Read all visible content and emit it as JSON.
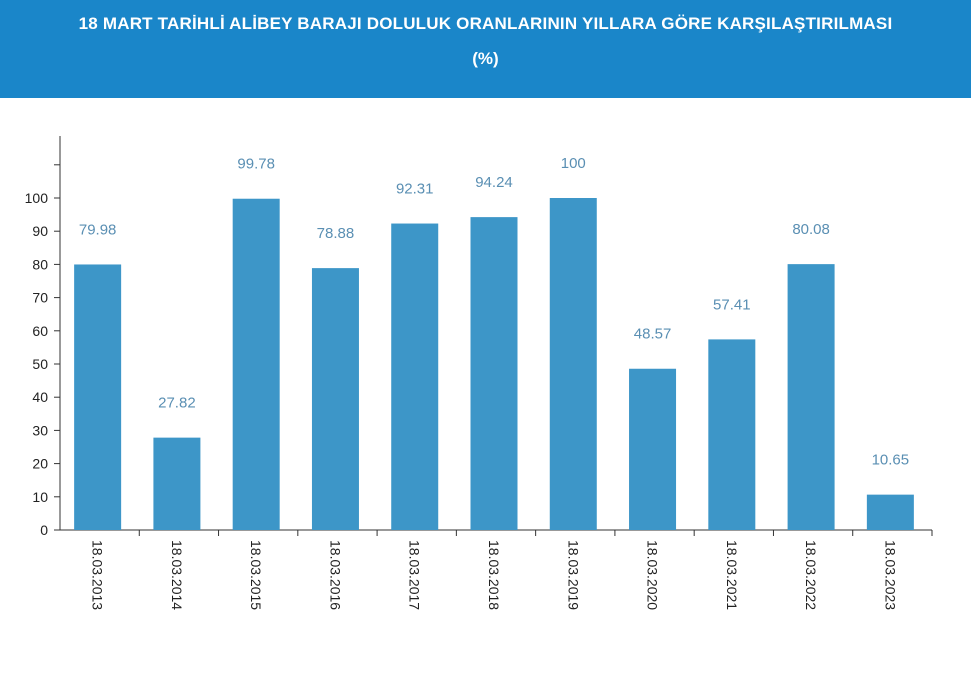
{
  "header": {
    "title": "18 MART TARİHLİ ALİBEY BARAJI DOLULUK ORANLARININ YILLARA GÖRE KARŞILAŞTIRILMASI",
    "subtitle": "(%)"
  },
  "colors": {
    "header_bg": "#1a86c9",
    "bar": "#3d96c8",
    "label": "#5a8fb3",
    "axis": "#333333"
  },
  "chart_data": {
    "type": "bar",
    "categories": [
      "18.03.2013",
      "18.03.2014",
      "18.03.2015",
      "18.03.2016",
      "18.03.2017",
      "18.03.2018",
      "18.03.2019",
      "18.03.2020",
      "18.03.2021",
      "18.03.2022",
      "18.03.2023"
    ],
    "values": [
      79.98,
      27.82,
      99.78,
      78.88,
      92.31,
      94.24,
      100,
      48.57,
      57.41,
      80.08,
      10.65
    ],
    "data_labels": [
      "79.98",
      "27.82",
      "99.78",
      "78.88",
      "92.31",
      "94.24",
      "100",
      "48.57",
      "57.41",
      "80.08",
      "10.65"
    ],
    "yticks": [
      0,
      10,
      20,
      30,
      40,
      50,
      60,
      70,
      80,
      90,
      100
    ],
    "ylim": [
      0,
      100
    ],
    "grid": false,
    "legend": "none"
  }
}
